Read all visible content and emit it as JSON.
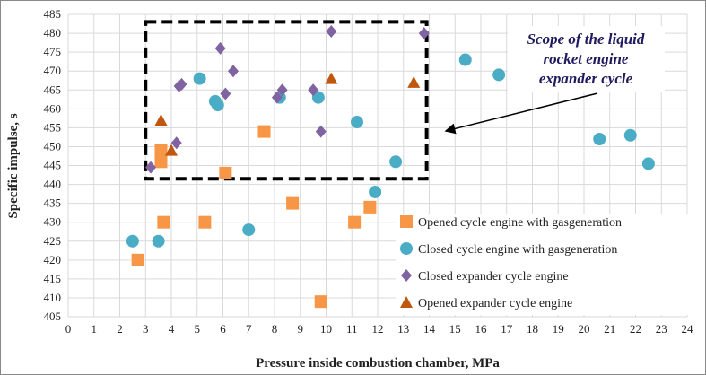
{
  "chart_data": {
    "type": "scatter",
    "xlabel": "Pressure inside combustion chamber, MPa",
    "ylabel": "Specific impulse, s",
    "xlim": [
      0,
      24
    ],
    "ylim": [
      405,
      485
    ],
    "xticks": [
      0,
      1,
      2,
      3,
      4,
      5,
      6,
      7,
      8,
      9,
      10,
      11,
      12,
      13,
      14,
      15,
      16,
      17,
      18,
      19,
      20,
      21,
      22,
      23,
      24
    ],
    "yticks": [
      405,
      410,
      415,
      420,
      425,
      430,
      435,
      440,
      445,
      450,
      455,
      460,
      465,
      470,
      475,
      480,
      485
    ],
    "grid": true,
    "legend_position": "bottom-right",
    "series": [
      {
        "name": "Opened cycle engine with gasgeneration",
        "marker": "square",
        "color": "#f79646",
        "points": [
          [
            2.7,
            420
          ],
          [
            3.7,
            430
          ],
          [
            5.3,
            430
          ],
          [
            8.7,
            435
          ],
          [
            9.8,
            409
          ],
          [
            11.1,
            430
          ],
          [
            11.7,
            434
          ],
          [
            3.6,
            446
          ],
          [
            3.6,
            449
          ],
          [
            6.1,
            443
          ],
          [
            7.6,
            454
          ]
        ]
      },
      {
        "name": "Closed cycle engine with gasgeneration",
        "marker": "circle",
        "color": "#4bacc6",
        "points": [
          [
            2.5,
            425
          ],
          [
            3.5,
            425
          ],
          [
            7.0,
            428
          ],
          [
            11.9,
            438
          ],
          [
            12.7,
            446
          ],
          [
            11.2,
            456.5
          ],
          [
            9.7,
            463
          ],
          [
            8.2,
            463
          ],
          [
            5.7,
            462
          ],
          [
            5.8,
            461
          ],
          [
            5.1,
            468
          ],
          [
            15.4,
            473
          ],
          [
            16.7,
            469
          ],
          [
            20.6,
            452
          ],
          [
            21.8,
            453
          ],
          [
            22.5,
            445.5
          ]
        ]
      },
      {
        "name": "Closed expander cycle engine",
        "marker": "diamond",
        "color": "#8064a2",
        "points": [
          [
            3.2,
            444.5
          ],
          [
            4.2,
            451
          ],
          [
            4.3,
            466
          ],
          [
            4.4,
            466.5
          ],
          [
            5.9,
            476
          ],
          [
            6.1,
            464
          ],
          [
            6.4,
            470
          ],
          [
            8.1,
            463
          ],
          [
            8.3,
            465
          ],
          [
            9.5,
            465
          ],
          [
            9.8,
            454
          ],
          [
            10.2,
            480.5
          ],
          [
            13.8,
            480
          ]
        ]
      },
      {
        "name": "Opened expander cycle engine",
        "marker": "triangle",
        "color": "#c0570f",
        "points": [
          [
            3.6,
            457
          ],
          [
            4.0,
            449
          ],
          [
            10.2,
            468
          ],
          [
            13.4,
            467
          ]
        ]
      }
    ],
    "annotation": {
      "lines": [
        "Scope of the liquid",
        "rocket engine",
        "expander cycle"
      ],
      "box_x": [
        3,
        13.9
      ],
      "box_y": [
        441.5,
        483
      ]
    }
  }
}
